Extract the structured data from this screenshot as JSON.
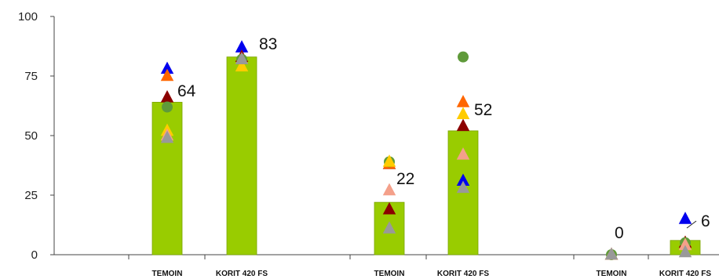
{
  "chart_data": {
    "type": "bar",
    "ylim": [
      0,
      100
    ],
    "yticks": [
      0,
      25,
      50,
      75,
      100
    ],
    "grid": false,
    "categories": [
      "TEMOIN",
      "KORIT 420 FS",
      "TEMOIN",
      "KORIT 420 FS",
      "TEMOIN",
      "KORIT 420 FS"
    ],
    "groups": 3,
    "bar_color": "#99cc00",
    "values": [
      64,
      83,
      22,
      52,
      0,
      6
    ],
    "data_labels": [
      "64",
      "83",
      "22",
      "52",
      "0",
      "6"
    ],
    "point_series": [
      {
        "marker": "triangle",
        "color": "#0000ee",
        "values": [
          78,
          87,
          38,
          31,
          0,
          15
        ]
      },
      {
        "marker": "triangle",
        "color": "#ff6600",
        "values": [
          75,
          83,
          38,
          64,
          0,
          5
        ]
      },
      {
        "marker": "triangle",
        "color": "#8b0000",
        "values": [
          66,
          83,
          19,
          54,
          0,
          5
        ]
      },
      {
        "marker": "circle",
        "color": "#5f9a3a",
        "values": [
          62,
          82,
          39,
          83,
          0,
          5
        ]
      },
      {
        "marker": "triangle",
        "color": "#ffcc00",
        "values": [
          52,
          79,
          39,
          59,
          0,
          4
        ]
      },
      {
        "marker": "triangle",
        "color": "#f4a08a",
        "values": [
          50,
          82,
          27,
          42,
          0,
          4
        ]
      },
      {
        "marker": "triangle",
        "color": "#999999",
        "values": [
          49,
          82,
          11,
          28,
          0,
          1
        ]
      }
    ]
  }
}
